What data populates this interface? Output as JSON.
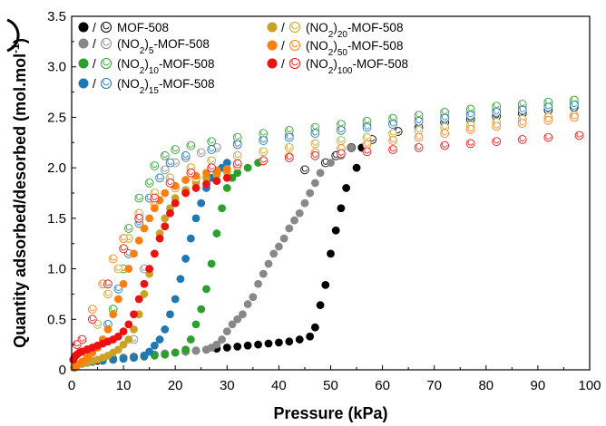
{
  "chart_data": {
    "type": "scatter",
    "xlabel": "Pressure (kPa)",
    "ylabel": "Quantity adsorbed/desorbed (mol.mol",
    "ylabel_sup": "-1",
    "ylabel_close": ")",
    "xlim": [
      0,
      100
    ],
    "ylim": [
      0,
      3.5
    ],
    "xticks": [
      "0",
      "10",
      "20",
      "30",
      "40",
      "50",
      "60",
      "70",
      "80",
      "90",
      "100"
    ],
    "yticks": [
      "0",
      "0.5",
      "1.0",
      "1.5",
      "2.0",
      "2.5",
      "3.0",
      "3.5"
    ],
    "grid": false,
    "legend_location": "top-left",
    "legend_separator": "/",
    "series": [
      {
        "name": "MOF-508",
        "name_parts": [
          {
            "t": "MOF-508"
          }
        ],
        "color": "#000000",
        "adsorption": {
          "x": [
            0.5,
            1,
            2,
            3,
            4,
            5,
            6,
            8,
            10,
            12,
            14,
            16,
            18,
            20,
            22,
            24,
            26,
            28,
            30,
            32,
            34,
            36,
            38,
            40,
            42,
            44,
            46,
            47,
            48,
            49,
            50,
            51,
            52,
            53,
            55,
            56
          ],
          "y": [
            0.02,
            0.04,
            0.06,
            0.07,
            0.08,
            0.09,
            0.1,
            0.11,
            0.12,
            0.13,
            0.14,
            0.15,
            0.16,
            0.17,
            0.18,
            0.19,
            0.2,
            0.21,
            0.22,
            0.23,
            0.24,
            0.25,
            0.26,
            0.27,
            0.28,
            0.3,
            0.33,
            0.42,
            0.64,
            0.84,
            1.15,
            1.38,
            1.6,
            1.8,
            2.0,
            2.2
          ]
        },
        "desorption": {
          "x": [
            97,
            92,
            87,
            82,
            77,
            72,
            67,
            63,
            58,
            54,
            51,
            49,
            45
          ],
          "y": [
            2.6,
            2.57,
            2.54,
            2.51,
            2.48,
            2.45,
            2.4,
            2.36,
            2.28,
            2.2,
            2.12,
            2.05,
            1.98
          ]
        }
      },
      {
        "name": "(NO2)5-MOF-508",
        "name_parts": [
          {
            "t": "(NO"
          },
          {
            "t": "2",
            "sub": true
          },
          {
            "t": ")"
          },
          {
            "t": "5",
            "sub": true
          },
          {
            "t": "-MOF-508"
          }
        ],
        "color": "#888888",
        "adsorption": {
          "x": [
            0.5,
            1,
            2,
            3,
            4,
            6,
            8,
            10,
            12,
            14,
            16,
            18,
            20,
            22,
            24,
            26,
            27,
            28,
            29,
            30,
            31,
            32,
            33,
            34,
            35,
            36,
            37,
            38,
            39,
            40,
            41,
            42,
            43,
            44,
            45,
            46,
            47,
            48,
            50,
            52,
            54
          ],
          "y": [
            0.02,
            0.04,
            0.06,
            0.07,
            0.08,
            0.1,
            0.11,
            0.12,
            0.13,
            0.14,
            0.15,
            0.16,
            0.17,
            0.18,
            0.19,
            0.2,
            0.22,
            0.25,
            0.3,
            0.38,
            0.45,
            0.5,
            0.55,
            0.65,
            0.72,
            0.85,
            0.95,
            1.05,
            1.15,
            1.22,
            1.3,
            1.4,
            1.48,
            1.55,
            1.65,
            1.75,
            1.85,
            1.95,
            2.05,
            2.12,
            2.2
          ]
        },
        "desorption": {
          "x": [
            97,
            92,
            87,
            82,
            77,
            72,
            67,
            62,
            57,
            52,
            47,
            42,
            37,
            32,
            28,
            25,
            22,
            20,
            18,
            16,
            14,
            12
          ],
          "y": [
            2.64,
            2.62,
            2.6,
            2.57,
            2.54,
            2.51,
            2.48,
            2.45,
            2.42,
            2.38,
            2.35,
            2.32,
            2.28,
            2.24,
            2.2,
            2.15,
            2.1,
            2.05,
            1.98,
            1.7,
            1.0,
            0.3
          ]
        }
      },
      {
        "name": "(NO2)10-MOF-508",
        "name_parts": [
          {
            "t": "(NO"
          },
          {
            "t": "2",
            "sub": true
          },
          {
            "t": ")"
          },
          {
            "t": "10",
            "sub": true
          },
          {
            "t": "-MOF-508"
          }
        ],
        "color": "#2ca02c",
        "adsorption": {
          "x": [
            0.5,
            1,
            2,
            3,
            4,
            6,
            8,
            10,
            12,
            14,
            16,
            18,
            20,
            22,
            23,
            24,
            25,
            26,
            27,
            28,
            29,
            30,
            31,
            32,
            34,
            36
          ],
          "y": [
            0.02,
            0.04,
            0.06,
            0.07,
            0.08,
            0.09,
            0.1,
            0.11,
            0.12,
            0.13,
            0.14,
            0.15,
            0.17,
            0.2,
            0.3,
            0.45,
            0.6,
            0.8,
            1.05,
            1.35,
            1.6,
            1.8,
            1.9,
            1.95,
            2.0,
            2.05
          ]
        },
        "desorption": {
          "x": [
            97,
            92,
            87,
            82,
            77,
            72,
            67,
            62,
            57,
            52,
            47,
            42,
            37,
            32,
            27,
            23,
            20,
            18,
            16,
            15,
            13,
            11,
            10,
            8
          ],
          "y": [
            2.67,
            2.65,
            2.63,
            2.61,
            2.58,
            2.55,
            2.52,
            2.49,
            2.46,
            2.43,
            2.4,
            2.37,
            2.34,
            2.3,
            2.26,
            2.22,
            2.18,
            2.12,
            2.02,
            1.85,
            1.7,
            1.4,
            1.0,
            0.6
          ]
        }
      },
      {
        "name": "(NO2)15-MOF-508",
        "name_parts": [
          {
            "t": "(NO"
          },
          {
            "t": "2",
            "sub": true
          },
          {
            "t": ")"
          },
          {
            "t": "15",
            "sub": true
          },
          {
            "t": "-MOF-508"
          }
        ],
        "color": "#1f77b4",
        "adsorption": {
          "x": [
            0.5,
            1,
            2,
            3,
            4,
            6,
            8,
            10,
            12,
            14,
            15,
            16,
            17,
            18,
            19,
            20,
            21,
            22,
            23,
            24,
            25,
            26,
            27,
            28,
            29,
            30
          ],
          "y": [
            0.02,
            0.04,
            0.06,
            0.07,
            0.08,
            0.09,
            0.1,
            0.11,
            0.12,
            0.14,
            0.18,
            0.24,
            0.3,
            0.4,
            0.55,
            0.7,
            0.9,
            1.1,
            1.3,
            1.5,
            1.65,
            1.8,
            1.9,
            1.95,
            2.0,
            2.05
          ]
        },
        "desorption": {
          "x": [
            97,
            92,
            87,
            82,
            77,
            72,
            67,
            62,
            57,
            52,
            47,
            42,
            37,
            32,
            27,
            22,
            19,
            17,
            15,
            13,
            11,
            9,
            7
          ],
          "y": [
            2.62,
            2.6,
            2.57,
            2.55,
            2.52,
            2.49,
            2.46,
            2.43,
            2.4,
            2.37,
            2.34,
            2.3,
            2.27,
            2.23,
            2.18,
            2.12,
            2.05,
            1.9,
            1.7,
            1.45,
            1.15,
            0.8,
            0.45
          ]
        }
      },
      {
        "name": "(NO2)20-MOF-508",
        "name_parts": [
          {
            "t": "(NO"
          },
          {
            "t": "2",
            "sub": true
          },
          {
            "t": ")"
          },
          {
            "t": "20",
            "sub": true
          },
          {
            "t": "-MOF-508"
          }
        ],
        "color": "#c9a227",
        "adsorption": {
          "x": [
            0.5,
            1,
            2,
            3,
            4,
            5,
            6,
            7,
            8,
            9,
            10,
            11,
            12,
            13,
            14,
            15,
            16,
            17,
            18,
            19,
            20,
            22,
            24,
            26,
            28,
            30
          ],
          "y": [
            0.02,
            0.04,
            0.06,
            0.07,
            0.09,
            0.1,
            0.12,
            0.14,
            0.17,
            0.2,
            0.25,
            0.3,
            0.4,
            0.55,
            0.75,
            0.95,
            1.15,
            1.35,
            1.5,
            1.6,
            1.7,
            1.78,
            1.85,
            1.9,
            1.93,
            1.96
          ]
        },
        "desorption": {
          "x": [
            97,
            92,
            87,
            82,
            77,
            72,
            67,
            62,
            57,
            52,
            47,
            42,
            37,
            32,
            27,
            23,
            19,
            16,
            13,
            11,
            9,
            7,
            5,
            3
          ],
          "y": [
            2.52,
            2.5,
            2.48,
            2.45,
            2.42,
            2.4,
            2.37,
            2.34,
            2.3,
            2.27,
            2.24,
            2.2,
            2.16,
            2.12,
            2.07,
            2.0,
            1.9,
            1.75,
            1.55,
            1.3,
            1.0,
            0.75,
            0.45,
            0.2
          ]
        }
      },
      {
        "name": "(NO2)50-MOF-508",
        "name_parts": [
          {
            "t": "(NO"
          },
          {
            "t": "2",
            "sub": true
          },
          {
            "t": ")"
          },
          {
            "t": "50",
            "sub": true
          },
          {
            "t": "-MOF-508"
          }
        ],
        "color": "#ff7f0e",
        "adsorption": {
          "x": [
            0.5,
            1,
            2,
            3,
            4,
            5,
            6,
            7,
            8,
            9,
            10,
            11,
            12,
            13,
            14,
            15,
            16,
            17,
            18,
            20,
            22,
            24,
            26,
            28,
            30
          ],
          "y": [
            0.02,
            0.05,
            0.08,
            0.12,
            0.17,
            0.22,
            0.3,
            0.4,
            0.55,
            0.7,
            0.85,
            1.0,
            1.15,
            1.28,
            1.4,
            1.5,
            1.6,
            1.68,
            1.75,
            1.82,
            1.88,
            1.92,
            1.95,
            1.97,
            1.99
          ]
        },
        "desorption": {
          "x": [
            97,
            92,
            87,
            82,
            77,
            72,
            67,
            62,
            57,
            52,
            47,
            42,
            37,
            32,
            28,
            24,
            20,
            16,
            13,
            10,
            8,
            6,
            4,
            2
          ],
          "y": [
            2.5,
            2.47,
            2.44,
            2.41,
            2.38,
            2.34,
            2.3,
            2.27,
            2.23,
            2.19,
            2.15,
            2.11,
            2.07,
            2.02,
            1.97,
            1.9,
            1.8,
            1.65,
            1.5,
            1.3,
            1.1,
            0.85,
            0.6,
            0.3
          ]
        }
      },
      {
        "name": "(NO2)100-MOF-508",
        "name_parts": [
          {
            "t": "(NO"
          },
          {
            "t": "2",
            "sub": true
          },
          {
            "t": ")"
          },
          {
            "t": "100",
            "sub": true
          },
          {
            "t": "-MOF-508"
          }
        ],
        "color": "#ee1111",
        "adsorption": {
          "x": [
            0.3,
            0.6,
            1,
            1.5,
            2,
            3,
            4,
            5,
            6,
            7,
            8,
            9,
            10,
            11,
            12,
            13,
            14,
            15,
            16,
            17,
            18,
            19,
            20,
            22,
            24,
            26,
            28,
            30
          ],
          "y": [
            0.1,
            0.13,
            0.15,
            0.17,
            0.18,
            0.2,
            0.22,
            0.24,
            0.26,
            0.28,
            0.3,
            0.33,
            0.38,
            0.45,
            0.55,
            0.7,
            0.85,
            1.0,
            1.15,
            1.3,
            1.42,
            1.55,
            1.65,
            1.75,
            1.8,
            1.84,
            1.87,
            1.9
          ]
        },
        "desorption": {
          "x": [
            98,
            92,
            87,
            82,
            77,
            72,
            67,
            62,
            57,
            52,
            47,
            42,
            37,
            32,
            27,
            23,
            19,
            16,
            13,
            10,
            7,
            4,
            2,
            1
          ],
          "y": [
            2.32,
            2.3,
            2.28,
            2.26,
            2.24,
            2.22,
            2.2,
            2.18,
            2.16,
            2.14,
            2.12,
            2.1,
            2.07,
            2.04,
            2.0,
            1.95,
            1.85,
            1.7,
            1.5,
            1.2,
            0.85,
            0.5,
            0.3,
            0.25
          ]
        }
      }
    ]
  }
}
